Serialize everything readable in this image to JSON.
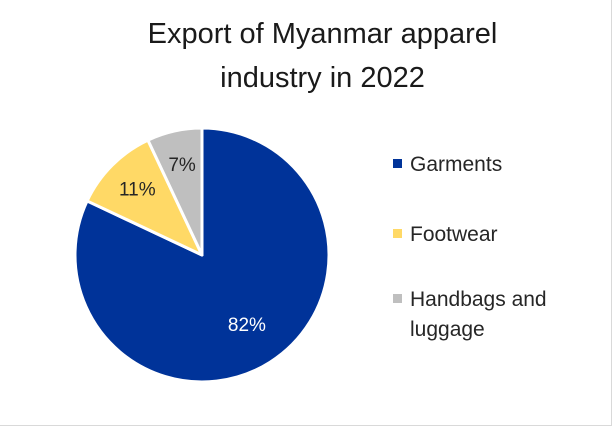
{
  "chart_data": {
    "type": "pie",
    "title": "Export of Myanmar apparel industry in 2022",
    "title_lines": [
      "Export of Myanmar apparel",
      "industry in 2022"
    ],
    "categories": [
      "Garments",
      "Footwear",
      "Handbags and luggage"
    ],
    "values": [
      82,
      11,
      7
    ],
    "value_labels": [
      "82%",
      "11%",
      "7%"
    ],
    "colors": [
      "#003399",
      "#FFD966",
      "#BFBFBF"
    ],
    "label_colors": [
      "#ffffff",
      "#262626",
      "#262626"
    ],
    "legend": {
      "position": "right",
      "entries": [
        {
          "label_lines": [
            "Garments"
          ]
        },
        {
          "label_lines": [
            "Footwear"
          ]
        },
        {
          "label_lines": [
            "Handbags and",
            "luggage"
          ]
        }
      ]
    }
  }
}
